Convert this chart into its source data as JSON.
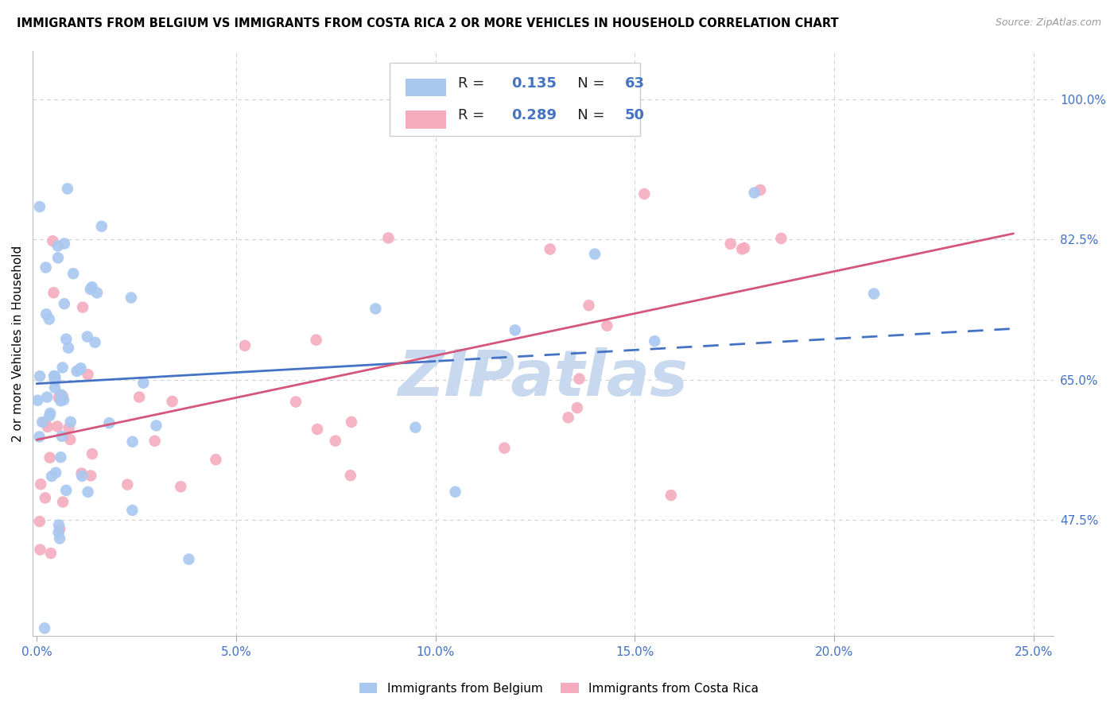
{
  "title": "IMMIGRANTS FROM BELGIUM VS IMMIGRANTS FROM COSTA RICA 2 OR MORE VEHICLES IN HOUSEHOLD CORRELATION CHART",
  "source": "Source: ZipAtlas.com",
  "ylabel": "2 or more Vehicles in Household",
  "legend_belgium": "Immigrants from Belgium",
  "legend_costa_rica": "Immigrants from Costa Rica",
  "R_belgium": 0.135,
  "N_belgium": 63,
  "R_costa_rica": 0.289,
  "N_costa_rica": 50,
  "xlim": [
    -0.001,
    0.255
  ],
  "ylim": [
    0.33,
    1.06
  ],
  "xticks": [
    0.0,
    0.05,
    0.1,
    0.15,
    0.2,
    0.25
  ],
  "xticklabels": [
    "0.0%",
    "5.0%",
    "10.0%",
    "15.0%",
    "20.0%",
    "25.0%"
  ],
  "ytick_vals": [
    0.475,
    0.65,
    0.825,
    1.0
  ],
  "yticklabels_right": [
    "47.5%",
    "65.0%",
    "82.5%",
    "100.0%"
  ],
  "color_belgium": "#A8C8F0",
  "color_costa_rica": "#F4ACBE",
  "color_line_belgium": "#4472C4",
  "color_line_costa_rica": "#D4567A",
  "color_axis_labels": "#4472C4",
  "color_grid": "#D0D0D0",
  "watermark": "ZIPatlas",
  "watermark_color": "#C8D8EE",
  "bel_line_start_x": 0.0,
  "bel_line_end_x": 0.245,
  "bel_line_split_x": 0.1,
  "cr_line_start_x": 0.0,
  "cr_line_end_x": 0.245,
  "bel_intercept": 0.645,
  "bel_slope": 0.28,
  "cr_intercept": 0.575,
  "cr_slope": 1.05
}
